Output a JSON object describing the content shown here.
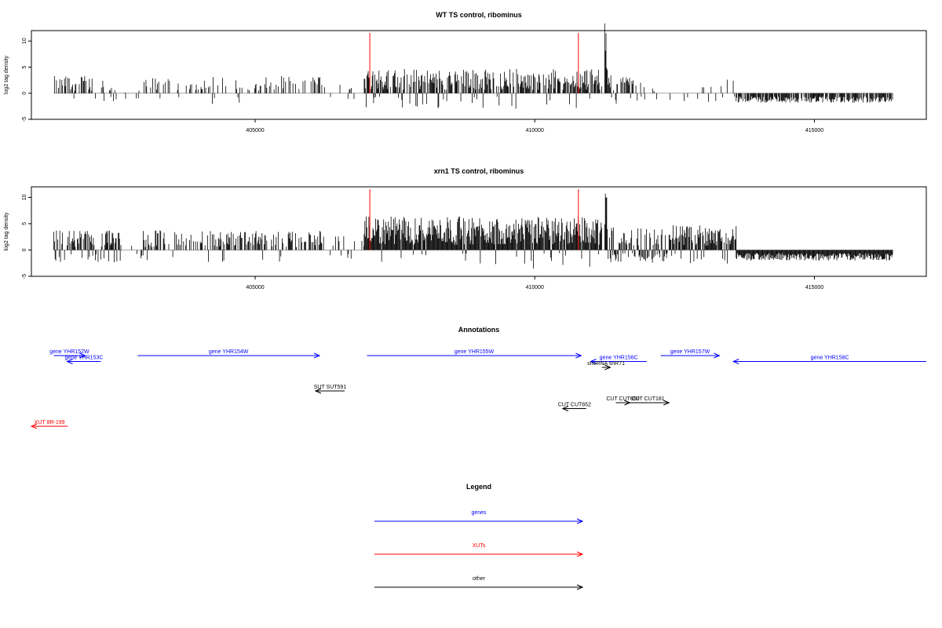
{
  "chart_data": [
    {
      "type": "bar",
      "title": "WT TS control, ribominus",
      "ylabel": "log2 tag density",
      "xlabel": "",
      "xlim": [
        401000,
        417000
      ],
      "ylim": [
        -5,
        12
      ],
      "yticks": [
        "-5",
        "0",
        "5",
        "10"
      ],
      "xticks": [
        "405000",
        "410000",
        "415000"
      ],
      "red_lines_x": [
        407050,
        410780
      ],
      "segments": [
        {
          "from": 401400,
          "to": 402300,
          "base": 1.2,
          "spread": 1.6,
          "density": 0.45,
          "neg": 0.15
        },
        {
          "from": 402300,
          "to": 403000,
          "base": 0.3,
          "spread": 1.0,
          "density": 0.25,
          "neg": 0.6
        },
        {
          "from": 403000,
          "to": 406300,
          "base": 1.2,
          "spread": 1.6,
          "density": 0.35,
          "neg": 0.08
        },
        {
          "from": 406300,
          "to": 406950,
          "base": 0.8,
          "spread": 1.0,
          "density": 0.15,
          "neg": 0.4
        },
        {
          "from": 406950,
          "to": 411200,
          "base": 1.6,
          "spread": 2.4,
          "density": 0.75,
          "neg": 0.1
        },
        {
          "from": 411250,
          "to": 411300,
          "base": 8.0,
          "spread": 3.0,
          "density": 1.0,
          "neg": 0.0
        },
        {
          "from": 411300,
          "to": 411700,
          "base": 1.4,
          "spread": 1.6,
          "density": 0.6,
          "neg": 0.1
        },
        {
          "from": 411700,
          "to": 413600,
          "base": 1.0,
          "spread": 1.2,
          "density": 0.18,
          "neg": 0.4
        },
        {
          "from": 413600,
          "to": 416400,
          "base": 1.4,
          "spread": 1.2,
          "density": 0.8,
          "neg": 1.0
        }
      ]
    },
    {
      "type": "bar",
      "title": "xrn1 TS control, ribominus",
      "ylabel": "log2 tag density",
      "xlabel": "",
      "xlim": [
        401000,
        417000
      ],
      "ylim": [
        -5,
        12
      ],
      "yticks": [
        "-5",
        "0",
        "5",
        "10"
      ],
      "xticks": [
        "405000",
        "410000",
        "415000"
      ],
      "red_lines_x": [
        407050,
        410780
      ],
      "segments": [
        {
          "from": 401400,
          "to": 402600,
          "base": 1.4,
          "spread": 1.8,
          "density": 0.8,
          "neg": 0.3
        },
        {
          "from": 402600,
          "to": 403000,
          "base": 0.5,
          "spread": 1.0,
          "density": 0.2,
          "neg": 0.5
        },
        {
          "from": 403000,
          "to": 406200,
          "base": 1.4,
          "spread": 1.8,
          "density": 0.5,
          "neg": 0.08
        },
        {
          "from": 406200,
          "to": 406950,
          "base": 1.0,
          "spread": 1.2,
          "density": 0.2,
          "neg": 0.4
        },
        {
          "from": 406950,
          "to": 411200,
          "base": 2.4,
          "spread": 3.0,
          "density": 1.0,
          "neg": 0.05
        },
        {
          "from": 411250,
          "to": 411300,
          "base": 8.0,
          "spread": 3.0,
          "density": 1.0,
          "neg": 0.0
        },
        {
          "from": 411300,
          "to": 412400,
          "base": 1.8,
          "spread": 1.8,
          "density": 0.9,
          "neg": 0.6
        },
        {
          "from": 412400,
          "to": 413600,
          "base": 2.0,
          "spread": 2.0,
          "density": 0.9,
          "neg": 0.1
        },
        {
          "from": 413600,
          "to": 416400,
          "base": 1.6,
          "spread": 1.4,
          "density": 1.0,
          "neg": 1.0
        }
      ]
    }
  ],
  "annotations": {
    "title": "Annotations",
    "features": [
      {
        "label": "gene YHR152W",
        "from": 401400,
        "to": 401960,
        "row": 0,
        "color": "#0000ff"
      },
      {
        "label": "gene YHR153C",
        "from": 402240,
        "to": 401640,
        "row": 1,
        "color": "#0000ff"
      },
      {
        "label": "gene YHR154W",
        "from": 402900,
        "to": 406150,
        "row": 0,
        "color": "#0000ff"
      },
      {
        "label": "gene YHR155W",
        "from": 407000,
        "to": 410830,
        "row": 0,
        "color": "#0000ff"
      },
      {
        "label": "gene YHR156C",
        "from": 412000,
        "to": 411000,
        "row": 1,
        "color": "#0000ff"
      },
      {
        "label": "snoRNA snR71",
        "from": 411200,
        "to": 411350,
        "row": 2,
        "color": "#000000"
      },
      {
        "label": "gene YHR157W",
        "from": 412250,
        "to": 413300,
        "row": 0,
        "color": "#0000ff"
      },
      {
        "label": "gene YHR158C",
        "from": 417000,
        "to": 413550,
        "row": 1,
        "color": "#0000ff"
      },
      {
        "label": "SUT SUT591",
        "from": 406600,
        "to": 406080,
        "row": 6,
        "color": "#000000"
      },
      {
        "label": "CUT CUT650",
        "from": 411450,
        "to": 411700,
        "row": 8,
        "color": "#000000"
      },
      {
        "label": "CUT CUT181",
        "from": 411650,
        "to": 412400,
        "row": 8,
        "color": "#000000"
      },
      {
        "label": "CUT CUT652",
        "from": 410920,
        "to": 410500,
        "row": 9,
        "color": "#000000"
      },
      {
        "label": "XUT 8R-199",
        "from": 401650,
        "to": 401000,
        "row": 12,
        "color": "#ff0000"
      }
    ]
  },
  "legend": {
    "title": "Legend",
    "items": [
      {
        "label": "genes",
        "color": "#0000ff"
      },
      {
        "label": "XUTs",
        "color": "#ff0000"
      },
      {
        "label": "other",
        "color": "#000000"
      }
    ]
  }
}
